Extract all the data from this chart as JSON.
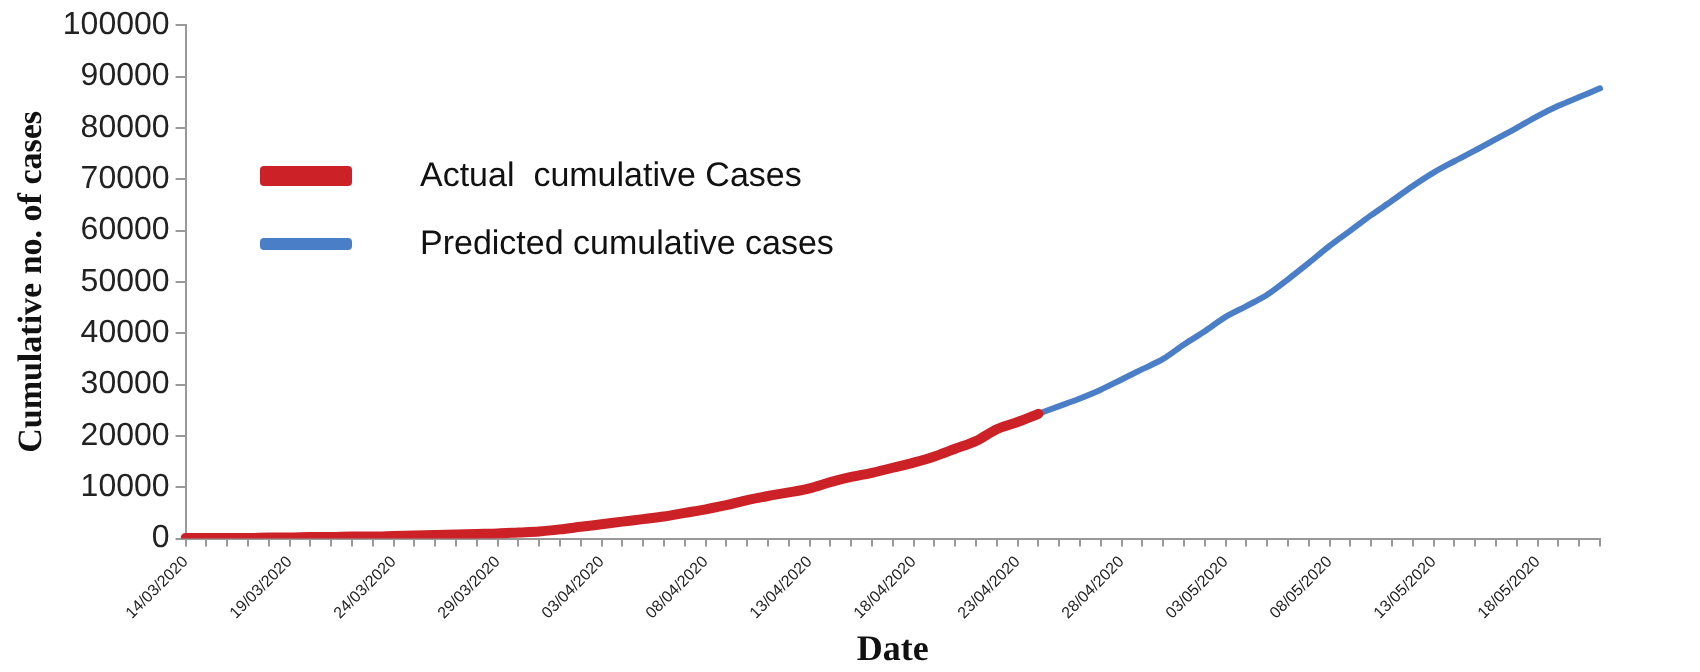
{
  "chart_data": {
    "type": "line",
    "xlabel": "Date",
    "ylabel": "Cumulative no. of cases",
    "categories": [
      "14/03/2020",
      null,
      null,
      null,
      null,
      "19/03/2020",
      null,
      null,
      null,
      null,
      "24/03/2020",
      null,
      null,
      null,
      null,
      "29/03/2020",
      null,
      null,
      null,
      null,
      "03/04/2020",
      null,
      null,
      null,
      null,
      "08/04/2020",
      null,
      null,
      null,
      null,
      "13/04/2020",
      null,
      null,
      null,
      null,
      "18/04/2020",
      null,
      null,
      null,
      null,
      "23/04/2020",
      null,
      null,
      null,
      null,
      "28/04/2020",
      null,
      null,
      null,
      null,
      "03/05/2020",
      null,
      null,
      null,
      null,
      "08/05/2020",
      null,
      null,
      null,
      null,
      "13/05/2020",
      null,
      null,
      null,
      null,
      "18/05/2020",
      null,
      null,
      null
    ],
    "series": [
      {
        "name": "Actual  cumulative Cases",
        "color": "#cc2127",
        "values": [
          100,
          100,
          100,
          100,
          200,
          200,
          300,
          300,
          400,
          400,
          500,
          600,
          700,
          800,
          900,
          1000,
          1200,
          1400,
          1800,
          2300,
          2800,
          3300,
          3800,
          4300,
          5000,
          5700,
          6500,
          7500,
          8300,
          9000,
          9800,
          11000,
          12000,
          12800,
          13800,
          14800,
          16000,
          17500,
          19000,
          21300,
          22700,
          24300,
          null,
          null,
          null,
          null,
          null,
          null,
          null,
          null,
          null,
          null,
          null,
          null,
          null,
          null,
          null,
          null,
          null,
          null,
          null,
          null,
          null,
          null,
          null,
          null,
          null,
          null,
          null
        ]
      },
      {
        "name": "Predicted cumulative cases",
        "color": "#4a7fc8",
        "values": [
          null,
          null,
          null,
          null,
          null,
          null,
          null,
          null,
          null,
          null,
          null,
          null,
          null,
          null,
          null,
          null,
          null,
          null,
          null,
          null,
          null,
          null,
          null,
          null,
          null,
          null,
          null,
          null,
          null,
          null,
          null,
          null,
          null,
          null,
          null,
          null,
          null,
          null,
          null,
          null,
          null,
          24300,
          25800,
          27300,
          29000,
          31000,
          33000,
          35000,
          37800,
          40400,
          43200,
          45300,
          47500,
          50500,
          53700,
          57000,
          60000,
          63000,
          65800,
          68700,
          71300,
          73500,
          75600,
          77800,
          80000,
          82300,
          84300,
          86000,
          87700
        ]
      }
    ],
    "ylim": [
      0,
      100000
    ],
    "yticks": [
      0,
      10000,
      20000,
      30000,
      40000,
      50000,
      60000,
      70000,
      80000,
      90000,
      100000
    ],
    "grid": false,
    "legend": "top left",
    "marker": "none",
    "line_style": "solid"
  }
}
